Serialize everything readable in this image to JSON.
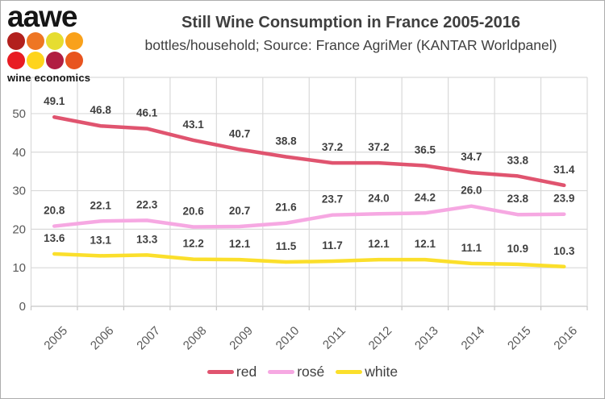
{
  "frame": {
    "border_color": "#adadad",
    "background": "#ffffff"
  },
  "logo": {
    "brand": "aawe",
    "caption": "wine economics",
    "dot_colors": [
      "#b2201d",
      "#ee7623",
      "#e6dd30",
      "#f9a11b",
      "#e81c23",
      "#fed41c",
      "#b11e42",
      "#e8541f"
    ]
  },
  "header": {
    "title": "Still Wine Consumption in France 2005-2016",
    "subtitle": "bottles/household;  Source: France AgriMer (KANTAR Worldpanel)"
  },
  "chart_data": {
    "type": "line",
    "title": "Still Wine Consumption in France 2005-2016",
    "xlabel": "",
    "ylabel": "bottles/household",
    "x": [
      "2005",
      "2006",
      "2007",
      "2008",
      "2009",
      "2010",
      "2011",
      "2012",
      "2013",
      "2014",
      "2015",
      "2016"
    ],
    "series": [
      {
        "name": "red",
        "color": "#e0546f",
        "values": [
          49.1,
          46.8,
          46.1,
          43.1,
          40.7,
          38.8,
          37.2,
          37.2,
          36.5,
          34.7,
          33.8,
          31.4
        ]
      },
      {
        "name": "rosé",
        "color": "#f6a8e2",
        "values": [
          20.8,
          22.1,
          22.3,
          20.6,
          20.7,
          21.6,
          23.7,
          24.0,
          24.2,
          26.0,
          23.8,
          23.9
        ]
      },
      {
        "name": "white",
        "color": "#fbdf2b",
        "values": [
          13.6,
          13.1,
          13.3,
          12.2,
          12.1,
          11.5,
          11.7,
          12.1,
          12.1,
          11.1,
          10.9,
          10.3
        ]
      }
    ],
    "ylim": [
      0,
      59.4
    ],
    "yticks": [
      0,
      10,
      20,
      30,
      40,
      50
    ],
    "grid": true,
    "data_labels": true,
    "legend_position": "bottom",
    "colors": {
      "gridline": "#d9d9d9",
      "axis_line": "#c6c6c6",
      "tick_label": "#595959",
      "data_label": "#3f3f3f"
    }
  }
}
